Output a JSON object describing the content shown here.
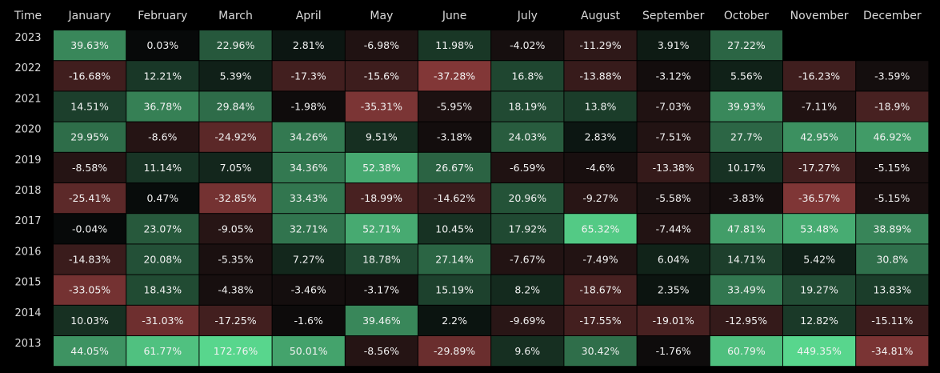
{
  "chart_data": {
    "type": "heatmap",
    "corner_label": "Time",
    "columns": [
      "January",
      "February",
      "March",
      "April",
      "May",
      "June",
      "July",
      "August",
      "September",
      "October",
      "November",
      "December"
    ],
    "rows": [
      {
        "year": "2023",
        "values": [
          39.63,
          0.03,
          22.96,
          2.81,
          -6.98,
          11.98,
          -4.02,
          -11.29,
          3.91,
          27.22,
          null,
          null
        ],
        "labels": [
          "39.63%",
          "0.03%",
          "22.96%",
          "2.81%",
          "-6.98%",
          "11.98%",
          "-4.02%",
          "-11.29%",
          "3.91%",
          "27.22%",
          "",
          ""
        ]
      },
      {
        "year": "2022",
        "values": [
          -16.68,
          12.21,
          5.39,
          -17.3,
          -15.6,
          -37.28,
          16.8,
          -13.88,
          -3.12,
          5.56,
          -16.23,
          -3.59
        ],
        "labels": [
          "-16.68%",
          "12.21%",
          "5.39%",
          "-17.3%",
          "-15.6%",
          "-37.28%",
          "16.8%",
          "-13.88%",
          "-3.12%",
          "5.56%",
          "-16.23%",
          "-3.59%"
        ]
      },
      {
        "year": "2021",
        "values": [
          14.51,
          36.78,
          29.84,
          -1.98,
          -35.31,
          -5.95,
          18.19,
          13.8,
          -7.03,
          39.93,
          -7.11,
          -18.9
        ],
        "labels": [
          "14.51%",
          "36.78%",
          "29.84%",
          "-1.98%",
          "-35.31%",
          "-5.95%",
          "18.19%",
          "13.8%",
          "-7.03%",
          "39.93%",
          "-7.11%",
          "-18.9%"
        ]
      },
      {
        "year": "2020",
        "values": [
          29.95,
          -8.6,
          -24.92,
          34.26,
          9.51,
          -3.18,
          24.03,
          2.83,
          -7.51,
          27.7,
          42.95,
          46.92
        ],
        "labels": [
          "29.95%",
          "-8.6%",
          "-24.92%",
          "34.26%",
          "9.51%",
          "-3.18%",
          "24.03%",
          "2.83%",
          "-7.51%",
          "27.7%",
          "42.95%",
          "46.92%"
        ]
      },
      {
        "year": "2019",
        "values": [
          -8.58,
          11.14,
          7.05,
          34.36,
          52.38,
          26.67,
          -6.59,
          -4.6,
          -13.38,
          10.17,
          -17.27,
          -5.15
        ],
        "labels": [
          "-8.58%",
          "11.14%",
          "7.05%",
          "34.36%",
          "52.38%",
          "26.67%",
          "-6.59%",
          "-4.6%",
          "-13.38%",
          "10.17%",
          "-17.27%",
          "-5.15%"
        ]
      },
      {
        "year": "2018",
        "values": [
          -25.41,
          0.47,
          -32.85,
          33.43,
          -18.99,
          -14.62,
          20.96,
          -9.27,
          -5.58,
          -3.83,
          -36.57,
          -5.15
        ],
        "labels": [
          "-25.41%",
          "0.47%",
          "-32.85%",
          "33.43%",
          "-18.99%",
          "-14.62%",
          "20.96%",
          "-9.27%",
          "-5.58%",
          "-3.83%",
          "-36.57%",
          "-5.15%"
        ]
      },
      {
        "year": "2017",
        "values": [
          -0.04,
          23.07,
          -9.05,
          32.71,
          52.71,
          10.45,
          17.92,
          65.32,
          -7.44,
          47.81,
          53.48,
          38.89
        ],
        "labels": [
          "-0.04%",
          "23.07%",
          "-9.05%",
          "32.71%",
          "52.71%",
          "10.45%",
          "17.92%",
          "65.32%",
          "-7.44%",
          "47.81%",
          "53.48%",
          "38.89%"
        ]
      },
      {
        "year": "2016",
        "values": [
          -14.83,
          20.08,
          -5.35,
          7.27,
          18.78,
          27.14,
          -7.67,
          -7.49,
          6.04,
          14.71,
          5.42,
          30.8
        ],
        "labels": [
          "-14.83%",
          "20.08%",
          "-5.35%",
          "7.27%",
          "18.78%",
          "27.14%",
          "-7.67%",
          "-7.49%",
          "6.04%",
          "14.71%",
          "5.42%",
          "30.8%"
        ]
      },
      {
        "year": "2015",
        "values": [
          -33.05,
          18.43,
          -4.38,
          -3.46,
          -3.17,
          15.19,
          8.2,
          -18.67,
          2.35,
          33.49,
          19.27,
          13.83
        ],
        "labels": [
          "-33.05%",
          "18.43%",
          "-4.38%",
          "-3.46%",
          "-3.17%",
          "15.19%",
          "8.2%",
          "-18.67%",
          "2.35%",
          "33.49%",
          "19.27%",
          "13.83%"
        ]
      },
      {
        "year": "2014",
        "values": [
          10.03,
          -31.03,
          -17.25,
          -1.6,
          39.46,
          2.2,
          -9.69,
          -17.55,
          -19.01,
          -12.95,
          12.82,
          -15.11
        ],
        "labels": [
          "10.03%",
          "-31.03%",
          "-17.25%",
          "-1.6%",
          "39.46%",
          "2.2%",
          "-9.69%",
          "-17.55%",
          "-19.01%",
          "-12.95%",
          "12.82%",
          "-15.11%"
        ]
      },
      {
        "year": "2013",
        "values": [
          44.05,
          61.77,
          172.76,
          50.01,
          -8.56,
          -29.89,
          9.6,
          30.42,
          -1.76,
          60.79,
          449.35,
          -34.81
        ],
        "labels": [
          "44.05%",
          "61.77%",
          "172.76%",
          "50.01%",
          "-8.56%",
          "-29.89%",
          "9.6%",
          "30.42%",
          "-1.76%",
          "60.79%",
          "449.35%",
          "-34.81%"
        ]
      }
    ],
    "colors": {
      "background": "#000000",
      "positive_max": "#58d68d",
      "negative_max": "#8a3a3a",
      "neutral": "#070909"
    }
  }
}
